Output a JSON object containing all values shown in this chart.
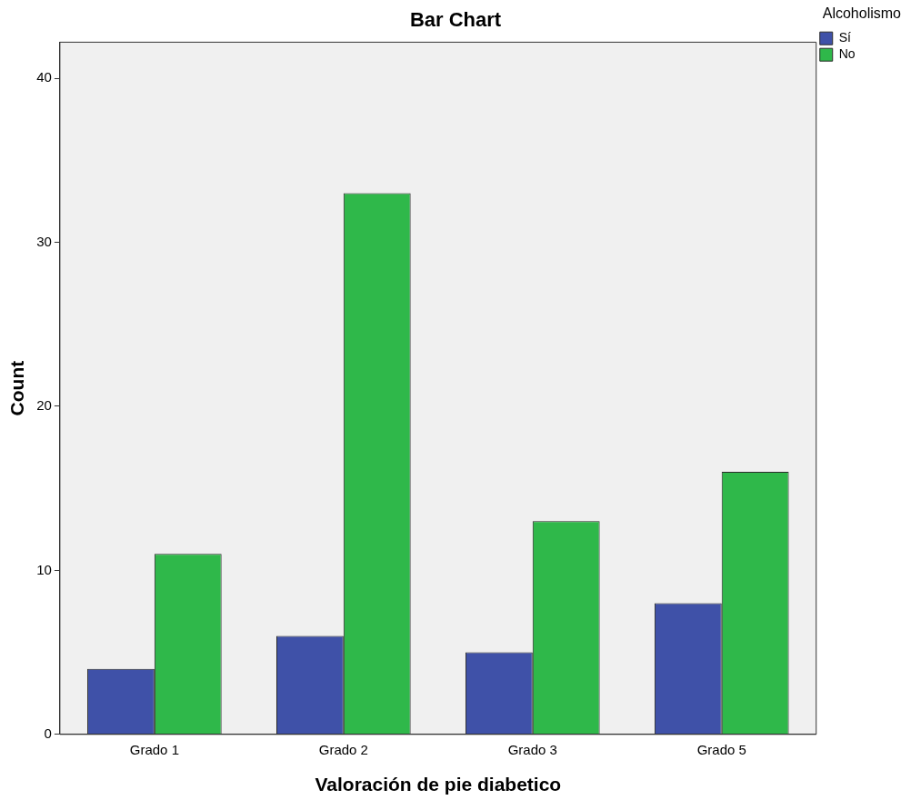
{
  "chart_data": {
    "type": "bar",
    "title": "Bar Chart",
    "xlabel": "Valoración de pie diabetico",
    "ylabel": "Count",
    "legend_title": "Alcoholismo",
    "categories": [
      "Grado 1",
      "Grado 2",
      "Grado 3",
      "Grado 5"
    ],
    "series": [
      {
        "name": "Sí",
        "color": "#3f51a8",
        "values": [
          4,
          6,
          5,
          8
        ]
      },
      {
        "name": "No",
        "color": "#2fb84a",
        "values": [
          11,
          33,
          13,
          16
        ]
      }
    ],
    "ylim": [
      0,
      42.2
    ],
    "yticks": [
      0,
      10,
      20,
      30,
      40
    ],
    "grid": false,
    "legend": "top right"
  }
}
